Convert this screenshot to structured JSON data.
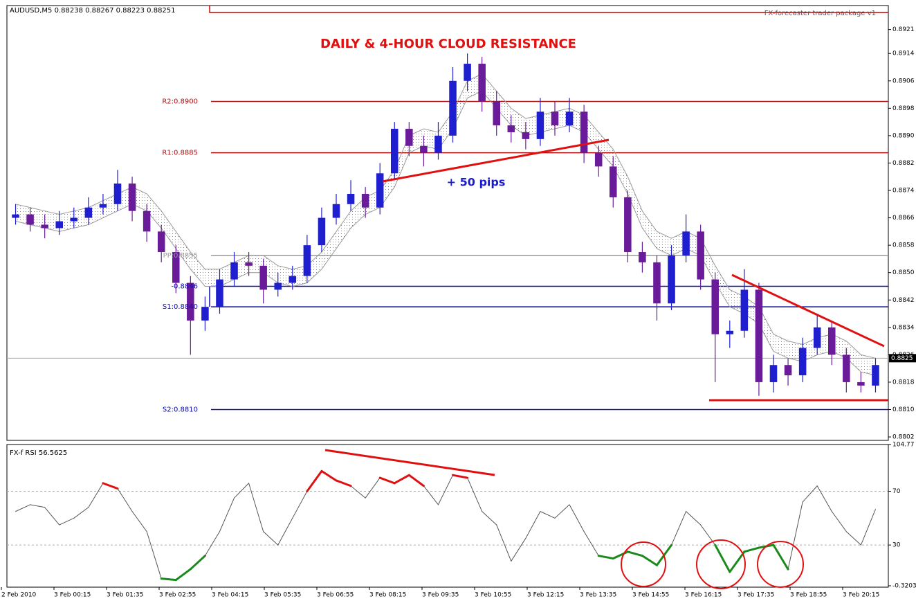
{
  "chart_data": [
    {
      "type": "candlestick",
      "title": "AUDUSD,M5  0.88238 0.88267 0.88223 0.88251",
      "indicator_label": "FX-forecaster trader package v1",
      "annotations": [
        "DAILY & 4-HOUR CLOUD RESISTANCE",
        "+ 50 pips"
      ],
      "x_labels": [
        "2 Feb 2010",
        "3 Feb 00:15",
        "3 Feb 01:35",
        "3 Feb 02:55",
        "3 Feb 04:15",
        "3 Feb 05:35",
        "3 Feb 06:55",
        "3 Feb 08:15",
        "3 Feb 09:35",
        "3 Feb 10:55",
        "3 Feb 12:15",
        "3 Feb 13:35",
        "3 Feb 14:55",
        "3 Feb 16:15",
        "3 Feb 17:35",
        "3 Feb 18:55",
        "3 Feb 20:15"
      ],
      "open": [
        0.8866,
        0.8867,
        0.8864,
        0.8863,
        0.8865,
        0.8866,
        0.8869,
        0.887,
        0.8876,
        0.8868,
        0.8862,
        0.8856,
        0.8847,
        0.8836,
        0.884,
        0.8848,
        0.8853,
        0.8852,
        0.8845,
        0.8847,
        0.8849,
        0.8858,
        0.8866,
        0.887,
        0.8873,
        0.8869,
        0.8879,
        0.8892,
        0.8887,
        0.8885,
        0.889,
        0.8906,
        0.8911,
        0.89,
        0.8893,
        0.8891,
        0.8889,
        0.8897,
        0.8893,
        0.8897,
        0.8885,
        0.8881,
        0.8872,
        0.8856,
        0.8853,
        0.8841,
        0.8855,
        0.8862,
        0.8848,
        0.8832,
        0.8833,
        0.8845,
        0.8818,
        0.8823,
        0.882,
        0.8828,
        0.8834,
        0.8826,
        0.8818,
        0.8817
      ],
      "high": [
        0.887,
        0.8869,
        0.8867,
        0.8868,
        0.8869,
        0.8872,
        0.8873,
        0.888,
        0.8878,
        0.887,
        0.8864,
        0.8858,
        0.8849,
        0.8843,
        0.8851,
        0.8856,
        0.8856,
        0.8854,
        0.885,
        0.8852,
        0.8861,
        0.8869,
        0.8873,
        0.8877,
        0.8875,
        0.8882,
        0.8894,
        0.8894,
        0.889,
        0.8894,
        0.891,
        0.8914,
        0.8913,
        0.8903,
        0.8896,
        0.8894,
        0.8901,
        0.89,
        0.8901,
        0.8899,
        0.8887,
        0.8884,
        0.8874,
        0.8859,
        0.8855,
        0.8858,
        0.8867,
        0.8864,
        0.885,
        0.8836,
        0.8851,
        0.8847,
        0.8826,
        0.8825,
        0.8831,
        0.8838,
        0.8836,
        0.8828,
        0.8821,
        0.8825
      ],
      "low": [
        0.8864,
        0.8862,
        0.886,
        0.8861,
        0.8863,
        0.8864,
        0.8867,
        0.8868,
        0.8865,
        0.8859,
        0.8853,
        0.8844,
        0.8826,
        0.8833,
        0.8838,
        0.8846,
        0.8849,
        0.8841,
        0.8843,
        0.8845,
        0.8847,
        0.8856,
        0.8864,
        0.8868,
        0.8866,
        0.8867,
        0.8877,
        0.8884,
        0.8881,
        0.8883,
        0.8888,
        0.8903,
        0.8897,
        0.889,
        0.8888,
        0.8886,
        0.8887,
        0.889,
        0.8891,
        0.8882,
        0.8878,
        0.8869,
        0.8853,
        0.885,
        0.8836,
        0.8839,
        0.8853,
        0.8845,
        0.8818,
        0.8828,
        0.8831,
        0.8814,
        0.8815,
        0.8817,
        0.8818,
        0.8826,
        0.8823,
        0.8815,
        0.8815,
        0.8815
      ],
      "close": [
        0.8867,
        0.8864,
        0.8863,
        0.8865,
        0.8866,
        0.8869,
        0.887,
        0.8876,
        0.8868,
        0.8862,
        0.8856,
        0.8847,
        0.8836,
        0.884,
        0.8848,
        0.8853,
        0.8852,
        0.8845,
        0.8847,
        0.8849,
        0.8858,
        0.8866,
        0.887,
        0.8873,
        0.8869,
        0.8879,
        0.8892,
        0.8887,
        0.8885,
        0.889,
        0.8906,
        0.8911,
        0.89,
        0.8893,
        0.8891,
        0.8889,
        0.8897,
        0.8893,
        0.8897,
        0.8885,
        0.8881,
        0.8872,
        0.8856,
        0.8853,
        0.8841,
        0.8855,
        0.8862,
        0.8848,
        0.8832,
        0.8833,
        0.8845,
        0.8818,
        0.8823,
        0.882,
        0.8828,
        0.8834,
        0.8826,
        0.8818,
        0.8817,
        0.8823
      ],
      "cloud": {
        "upper": [
          0.887,
          0.8869,
          0.8868,
          0.8867,
          0.8868,
          0.8869,
          0.8871,
          0.8873,
          0.8875,
          0.8873,
          0.8868,
          0.8862,
          0.8856,
          0.8851,
          0.8851,
          0.8853,
          0.8855,
          0.8855,
          0.8852,
          0.8851,
          0.8852,
          0.8856,
          0.8862,
          0.8868,
          0.8872,
          0.8874,
          0.888,
          0.889,
          0.8892,
          0.8891,
          0.8897,
          0.8906,
          0.8908,
          0.8903,
          0.8898,
          0.8895,
          0.8896,
          0.8897,
          0.8898,
          0.8896,
          0.8891,
          0.8886,
          0.8878,
          0.8868,
          0.8862,
          0.886,
          0.8862,
          0.886,
          0.8852,
          0.8845,
          0.8843,
          0.884,
          0.8832,
          0.883,
          0.8829,
          0.8831,
          0.8832,
          0.883,
          0.8826,
          0.8825
        ],
        "lower": [
          0.8865,
          0.8864,
          0.8863,
          0.8862,
          0.8863,
          0.8864,
          0.8866,
          0.8868,
          0.887,
          0.8868,
          0.8863,
          0.8857,
          0.8851,
          0.8846,
          0.8846,
          0.8848,
          0.885,
          0.885,
          0.8847,
          0.8846,
          0.8847,
          0.8851,
          0.8857,
          0.8863,
          0.8867,
          0.8869,
          0.8875,
          0.8885,
          0.8887,
          0.8886,
          0.8892,
          0.8901,
          0.8903,
          0.8898,
          0.8893,
          0.889,
          0.8891,
          0.8892,
          0.8893,
          0.8891,
          0.8886,
          0.8881,
          0.8873,
          0.8863,
          0.8857,
          0.8855,
          0.8857,
          0.8855,
          0.8847,
          0.884,
          0.8838,
          0.8835,
          0.8827,
          0.8825,
          0.8824,
          0.8826,
          0.8827,
          0.8825,
          0.8821,
          0.882
        ]
      },
      "up_color": "#1f1fd0",
      "down_color": "#6a1b9a",
      "cloud_color": "#999999",
      "ylim": [
        0.8801,
        0.8928
      ],
      "yticks": [
        0.8921,
        0.8914,
        0.8906,
        0.8898,
        {
          "value": 0.889,
          "label": "0.8890"
        },
        0.8882,
        0.8874,
        0.8866,
        0.8858,
        {
          "value": 0.885,
          "label": "0.8850"
        },
        0.8842,
        0.8834,
        0.8826,
        0.8818,
        {
          "value": 0.881,
          "label": "0.8810"
        },
        0.8802
      ],
      "levels": [
        {
          "label": "R2:0.8900",
          "value": 0.89,
          "color": "#b01010"
        },
        {
          "label": "R1:0.8885",
          "value": 0.8885,
          "color": "#b01010"
        },
        {
          "label": "PP:0.8855",
          "value": 0.8855,
          "color": "#999999"
        },
        {
          "label": "-0.8846",
          "value": 0.8846,
          "color": "#0a0ab0"
        },
        {
          "label": "S1:0.8840",
          "value": 0.884,
          "color": "#0a0ab0"
        },
        {
          "label": "S2:0.8810",
          "value": 0.881,
          "color": "#0a0ab0"
        }
      ],
      "current_price": 0.8825
    },
    {
      "type": "line",
      "title": "FX-f RSI 56.5625",
      "values": [
        55,
        60,
        58,
        45,
        50,
        58,
        76,
        72,
        55,
        40,
        5,
        4,
        12,
        22,
        40,
        65,
        76,
        40,
        30,
        50,
        70,
        85,
        78,
        74,
        65,
        80,
        76,
        82,
        74,
        60,
        82,
        80,
        55,
        45,
        18,
        35,
        55,
        50,
        60,
        40,
        22,
        20,
        25,
        22,
        15,
        30,
        55,
        45,
        30,
        10,
        25,
        28,
        30,
        12,
        62,
        74,
        55,
        40,
        30,
        56.56
      ],
      "color": "#555555",
      "overbought_color": "#e01010",
      "oversold_color": "#1a8a1a",
      "ylim": [
        -0.3203,
        104.77
      ],
      "yticks": [
        104.77,
        70,
        30,
        -0.3203
      ],
      "grid": true
    }
  ]
}
